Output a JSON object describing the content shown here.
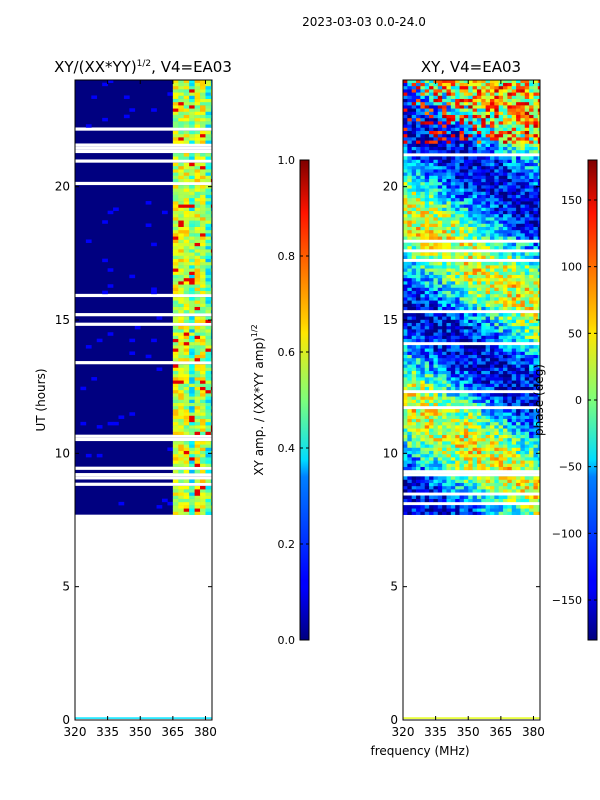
{
  "figure_title": "2023-03-03 0.0-24.0",
  "chart_data": [
    {
      "type": "heatmap",
      "title_prefix": "XY/(XX*YY)",
      "title_exp": "1/2",
      "title_suffix": ", V4=EA03",
      "xlabel": "",
      "ylabel": "UT (hours)",
      "xlim": [
        320,
        383
      ],
      "ylim": [
        0,
        24
      ],
      "xticks": [
        320,
        335,
        350,
        365,
        380
      ],
      "yticks": [
        0,
        5,
        10,
        15,
        20
      ],
      "data_start_hour": 7.7,
      "data_end_hour": 24,
      "colorbar": {
        "label_main": "XY amp. / (XX*YY amp)",
        "label_exp": "1/2",
        "range": [
          0.0,
          1.0
        ],
        "ticks": [
          "0.0",
          "0.2",
          "0.4",
          "0.6",
          "0.8",
          "1.0"
        ],
        "colormap": "jet"
      }
    },
    {
      "type": "heatmap",
      "title": "XY, V4=EA03",
      "xlabel": "frequency (MHz)",
      "ylabel": "",
      "xlim": [
        320,
        383
      ],
      "ylim": [
        0,
        24
      ],
      "xticks": [
        320,
        335,
        350,
        365,
        380
      ],
      "yticks": [
        0,
        5,
        10,
        15,
        20
      ],
      "data_start_hour": 7.7,
      "data_end_hour": 24,
      "colorbar": {
        "label": "phase (deg)",
        "range": [
          -180,
          180
        ],
        "ticks": [
          "−150",
          "−100",
          "−50",
          "0",
          "50",
          "100",
          "150"
        ],
        "colormap": "jet"
      }
    }
  ]
}
